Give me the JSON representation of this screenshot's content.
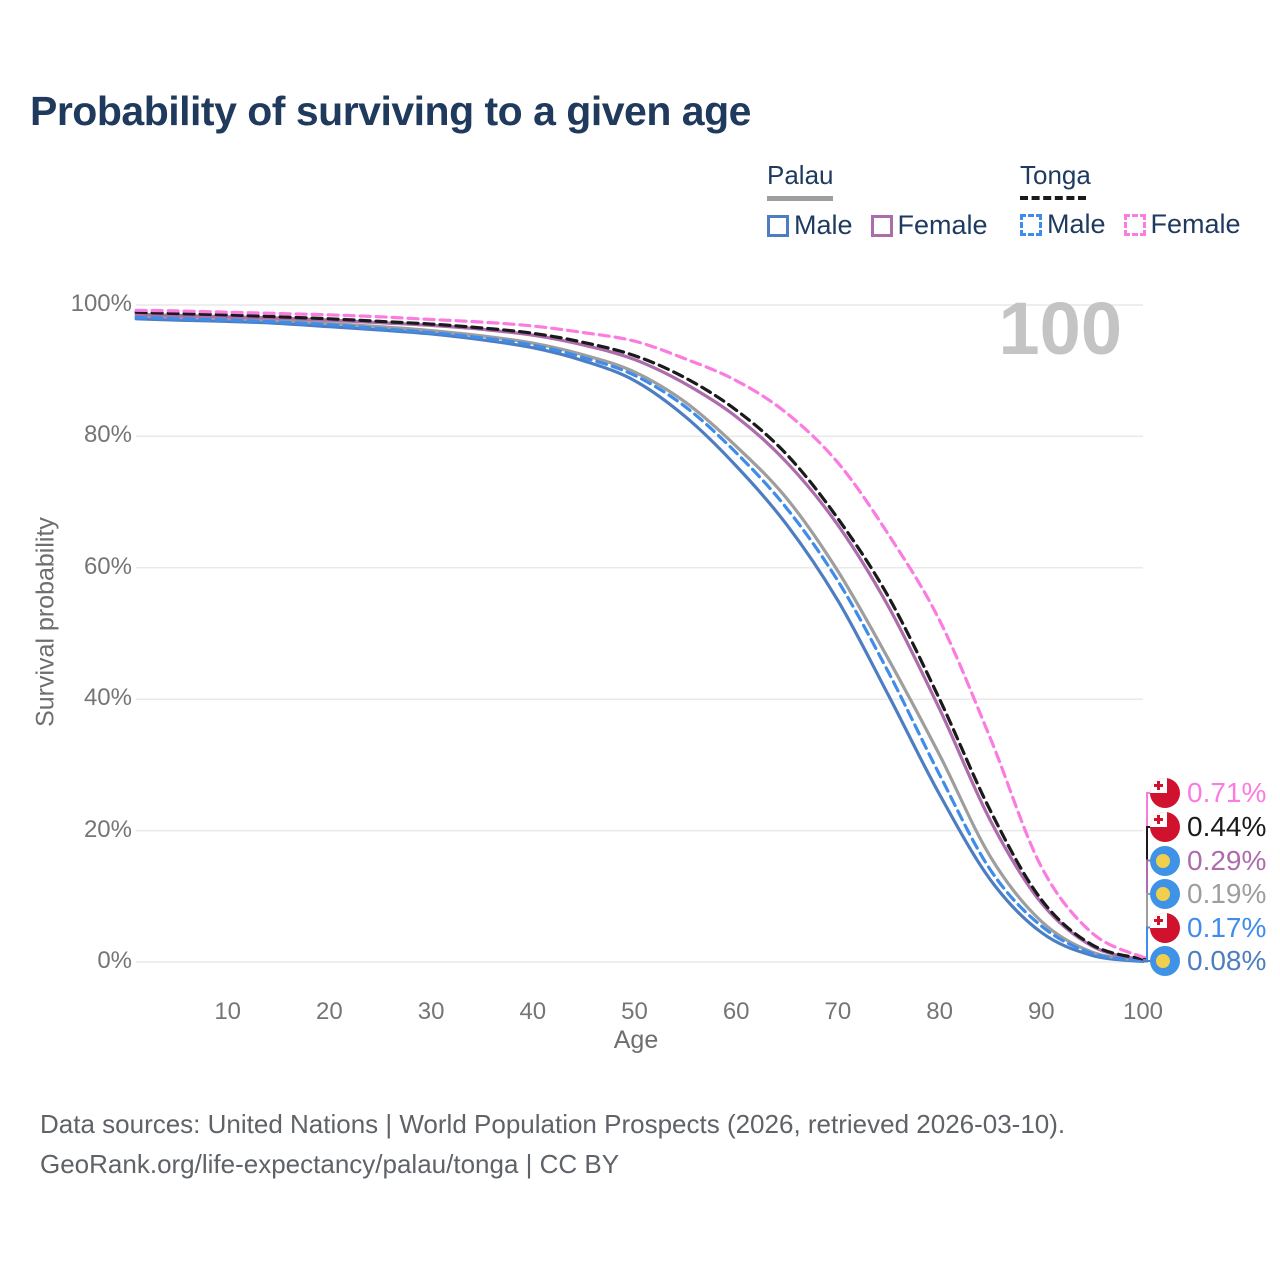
{
  "title": "Probability of surviving to a given age",
  "legend": {
    "groups": [
      {
        "name": "Palau",
        "underline": {
          "style": "solid",
          "color": "#9e9e9e"
        },
        "items": [
          {
            "label": "Male",
            "color": "#4d7ec2",
            "dashed": false
          },
          {
            "label": "Female",
            "color": "#ad6cac",
            "dashed": false
          }
        ]
      },
      {
        "name": "Tonga",
        "underline": {
          "style": "dashed",
          "color": "#1a1a1a"
        },
        "items": [
          {
            "label": "Male",
            "color": "#3f8ceb",
            "dashed": true
          },
          {
            "label": "Female",
            "color": "#fb7ce1",
            "dashed": true
          }
        ]
      }
    ]
  },
  "chart_data": {
    "type": "line",
    "title": "Probability of surviving to a given age",
    "xlabel": "Age",
    "ylabel": "Survival probability",
    "xlim": [
      0,
      100
    ],
    "ylim": [
      0,
      100
    ],
    "grid": "horizontal",
    "legend_position": "top-right",
    "watermark": "100",
    "x_ticks": {
      "values": [
        10,
        20,
        30,
        40,
        50,
        60,
        70,
        80,
        90,
        100
      ],
      "labels": [
        "10",
        "20",
        "30",
        "40",
        "50",
        "60",
        "70",
        "80",
        "90",
        "100"
      ]
    },
    "y_ticks": {
      "values": [
        0,
        20,
        40,
        60,
        80,
        100
      ],
      "labels": [
        "0%",
        "20%",
        "40%",
        "60%",
        "80%",
        "100%"
      ]
    },
    "x": [
      1,
      5,
      10,
      15,
      20,
      25,
      30,
      35,
      40,
      45,
      50,
      55,
      60,
      65,
      70,
      75,
      80,
      85,
      90,
      95,
      100
    ],
    "series": [
      {
        "id": "palau-male",
        "name": "Palau Male",
        "country": "Palau",
        "sex": "male",
        "color": "#4d7ec2",
        "dashed": false,
        "flag": "palau",
        "end_label": "0.08%",
        "values": [
          97.9,
          97.7,
          97.5,
          97.2,
          96.7,
          96.2,
          95.6,
          94.7,
          93.5,
          91.5,
          88.5,
          83.0,
          75.5,
          66.5,
          55.0,
          40.5,
          25.5,
          12.5,
          4.5,
          1.0,
          0.08
        ]
      },
      {
        "id": "palau-all",
        "name": "Palau (both sexes)",
        "country": "Palau",
        "sex": "all",
        "color": "#9e9e9e",
        "dashed": false,
        "flag": "palau",
        "end_label": "0.19%",
        "values": [
          98.3,
          98.1,
          97.9,
          97.6,
          97.2,
          96.7,
          96.1,
          95.3,
          94.2,
          92.4,
          89.8,
          85.2,
          78.5,
          70.5,
          59.5,
          46.0,
          31.5,
          16.0,
          6.2,
          1.5,
          0.19
        ]
      },
      {
        "id": "palau-female",
        "name": "Palau Female",
        "country": "Palau",
        "sex": "female",
        "color": "#ad6cac",
        "dashed": false,
        "flag": "palau",
        "end_label": "0.29%",
        "values": [
          98.6,
          98.4,
          98.2,
          98.0,
          97.7,
          97.3,
          96.9,
          96.3,
          95.4,
          93.9,
          91.7,
          88.0,
          83.0,
          76.0,
          66.5,
          54.0,
          38.5,
          21.5,
          9.0,
          2.4,
          0.29
        ]
      },
      {
        "id": "tonga-male",
        "name": "Tonga Male",
        "country": "Tonga",
        "sex": "male",
        "color": "#3f8ceb",
        "dashed": true,
        "flag": "tonga",
        "end_label": "0.17%",
        "values": [
          98.1,
          97.9,
          97.7,
          97.4,
          97.0,
          96.4,
          95.8,
          95.0,
          93.9,
          92.0,
          89.3,
          84.5,
          77.5,
          69.0,
          58.0,
          44.0,
          28.5,
          14.0,
          5.5,
          1.3,
          0.17
        ]
      },
      {
        "id": "tonga-all",
        "name": "Tonga (both sexes)",
        "country": "Tonga",
        "sex": "all",
        "color": "#1a1a1a",
        "dashed": true,
        "flag": "tonga",
        "end_label": "0.44%",
        "values": [
          98.9,
          98.7,
          98.5,
          98.2,
          97.9,
          97.5,
          97.1,
          96.5,
          95.7,
          94.3,
          92.3,
          88.9,
          84.0,
          77.2,
          67.5,
          55.5,
          40.0,
          23.0,
          9.5,
          2.6,
          0.44
        ]
      },
      {
        "id": "tonga-female",
        "name": "Tonga Female",
        "country": "Tonga",
        "sex": "female",
        "color": "#fb7ce1",
        "dashed": true,
        "flag": "tonga",
        "end_label": "0.71%",
        "values": [
          99.2,
          99.1,
          98.9,
          98.7,
          98.5,
          98.2,
          97.8,
          97.4,
          96.8,
          95.8,
          94.5,
          91.8,
          88.5,
          83.5,
          76.0,
          65.0,
          52.0,
          34.0,
          14.5,
          4.4,
          0.71
        ]
      }
    ]
  },
  "footer": {
    "line1": "Data sources: United Nations | World Population Prospects (2026, retrieved 2026-03-10).",
    "line2": "GeoRank.org/life-expectancy/palau/tonga | CC BY"
  }
}
